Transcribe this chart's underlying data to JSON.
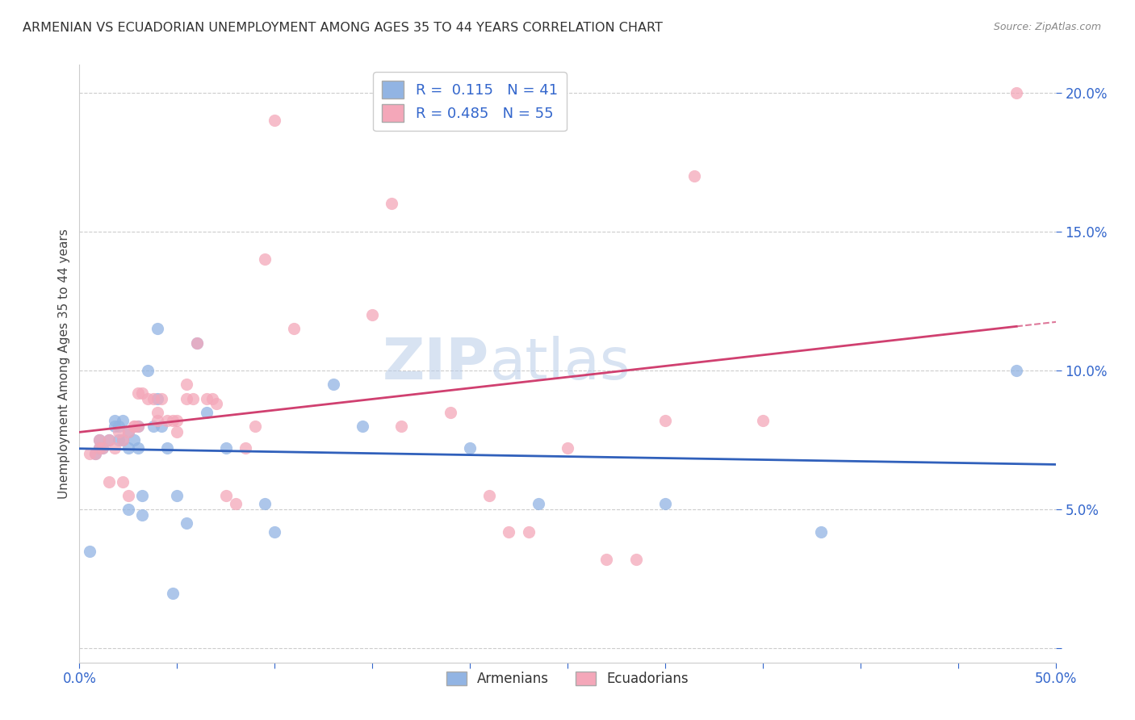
{
  "title": "ARMENIAN VS ECUADORIAN UNEMPLOYMENT AMONG AGES 35 TO 44 YEARS CORRELATION CHART",
  "source": "Source: ZipAtlas.com",
  "ylabel": "Unemployment Among Ages 35 to 44 years",
  "xlim": [
    0.0,
    0.5
  ],
  "ylim": [
    -0.005,
    0.21
  ],
  "xticks": [
    0.0,
    0.05,
    0.1,
    0.15,
    0.2,
    0.25,
    0.3,
    0.35,
    0.4,
    0.45,
    0.5
  ],
  "yticks": [
    0.0,
    0.05,
    0.1,
    0.15,
    0.2
  ],
  "armenian_R": 0.115,
  "armenian_N": 41,
  "ecuadorian_R": 0.485,
  "ecuadorian_N": 55,
  "armenian_color": "#92b4e3",
  "ecuadorian_color": "#f4a7b9",
  "armenian_line_color": "#3060bb",
  "ecuadorian_line_color": "#d04070",
  "watermark": "ZIPatlas",
  "armenian_x": [
    0.005,
    0.008,
    0.01,
    0.01,
    0.012,
    0.015,
    0.018,
    0.018,
    0.02,
    0.02,
    0.022,
    0.022,
    0.025,
    0.025,
    0.025,
    0.028,
    0.03,
    0.03,
    0.032,
    0.032,
    0.035,
    0.038,
    0.04,
    0.04,
    0.042,
    0.045,
    0.048,
    0.05,
    0.055,
    0.06,
    0.065,
    0.075,
    0.095,
    0.1,
    0.13,
    0.145,
    0.2,
    0.235,
    0.3,
    0.38,
    0.48
  ],
  "armenian_y": [
    0.035,
    0.07,
    0.072,
    0.075,
    0.072,
    0.075,
    0.08,
    0.082,
    0.075,
    0.08,
    0.075,
    0.082,
    0.072,
    0.078,
    0.05,
    0.075,
    0.08,
    0.072,
    0.055,
    0.048,
    0.1,
    0.08,
    0.115,
    0.09,
    0.08,
    0.072,
    0.02,
    0.055,
    0.045,
    0.11,
    0.085,
    0.072,
    0.052,
    0.042,
    0.095,
    0.08,
    0.072,
    0.052,
    0.052,
    0.042,
    0.1
  ],
  "ecuadorian_x": [
    0.005,
    0.008,
    0.01,
    0.01,
    0.012,
    0.015,
    0.015,
    0.018,
    0.02,
    0.022,
    0.022,
    0.025,
    0.025,
    0.028,
    0.028,
    0.03,
    0.03,
    0.032,
    0.035,
    0.038,
    0.04,
    0.04,
    0.042,
    0.045,
    0.048,
    0.05,
    0.05,
    0.055,
    0.055,
    0.058,
    0.06,
    0.065,
    0.068,
    0.07,
    0.075,
    0.08,
    0.085,
    0.09,
    0.095,
    0.1,
    0.11,
    0.15,
    0.16,
    0.165,
    0.19,
    0.21,
    0.22,
    0.23,
    0.25,
    0.27,
    0.285,
    0.3,
    0.315,
    0.35,
    0.48
  ],
  "ecuadorian_y": [
    0.07,
    0.07,
    0.072,
    0.075,
    0.072,
    0.075,
    0.06,
    0.072,
    0.078,
    0.075,
    0.06,
    0.078,
    0.055,
    0.08,
    0.08,
    0.08,
    0.092,
    0.092,
    0.09,
    0.09,
    0.085,
    0.082,
    0.09,
    0.082,
    0.082,
    0.082,
    0.078,
    0.095,
    0.09,
    0.09,
    0.11,
    0.09,
    0.09,
    0.088,
    0.055,
    0.052,
    0.072,
    0.08,
    0.14,
    0.19,
    0.115,
    0.12,
    0.16,
    0.08,
    0.085,
    0.055,
    0.042,
    0.042,
    0.072,
    0.032,
    0.032,
    0.082,
    0.17,
    0.082,
    0.2
  ]
}
